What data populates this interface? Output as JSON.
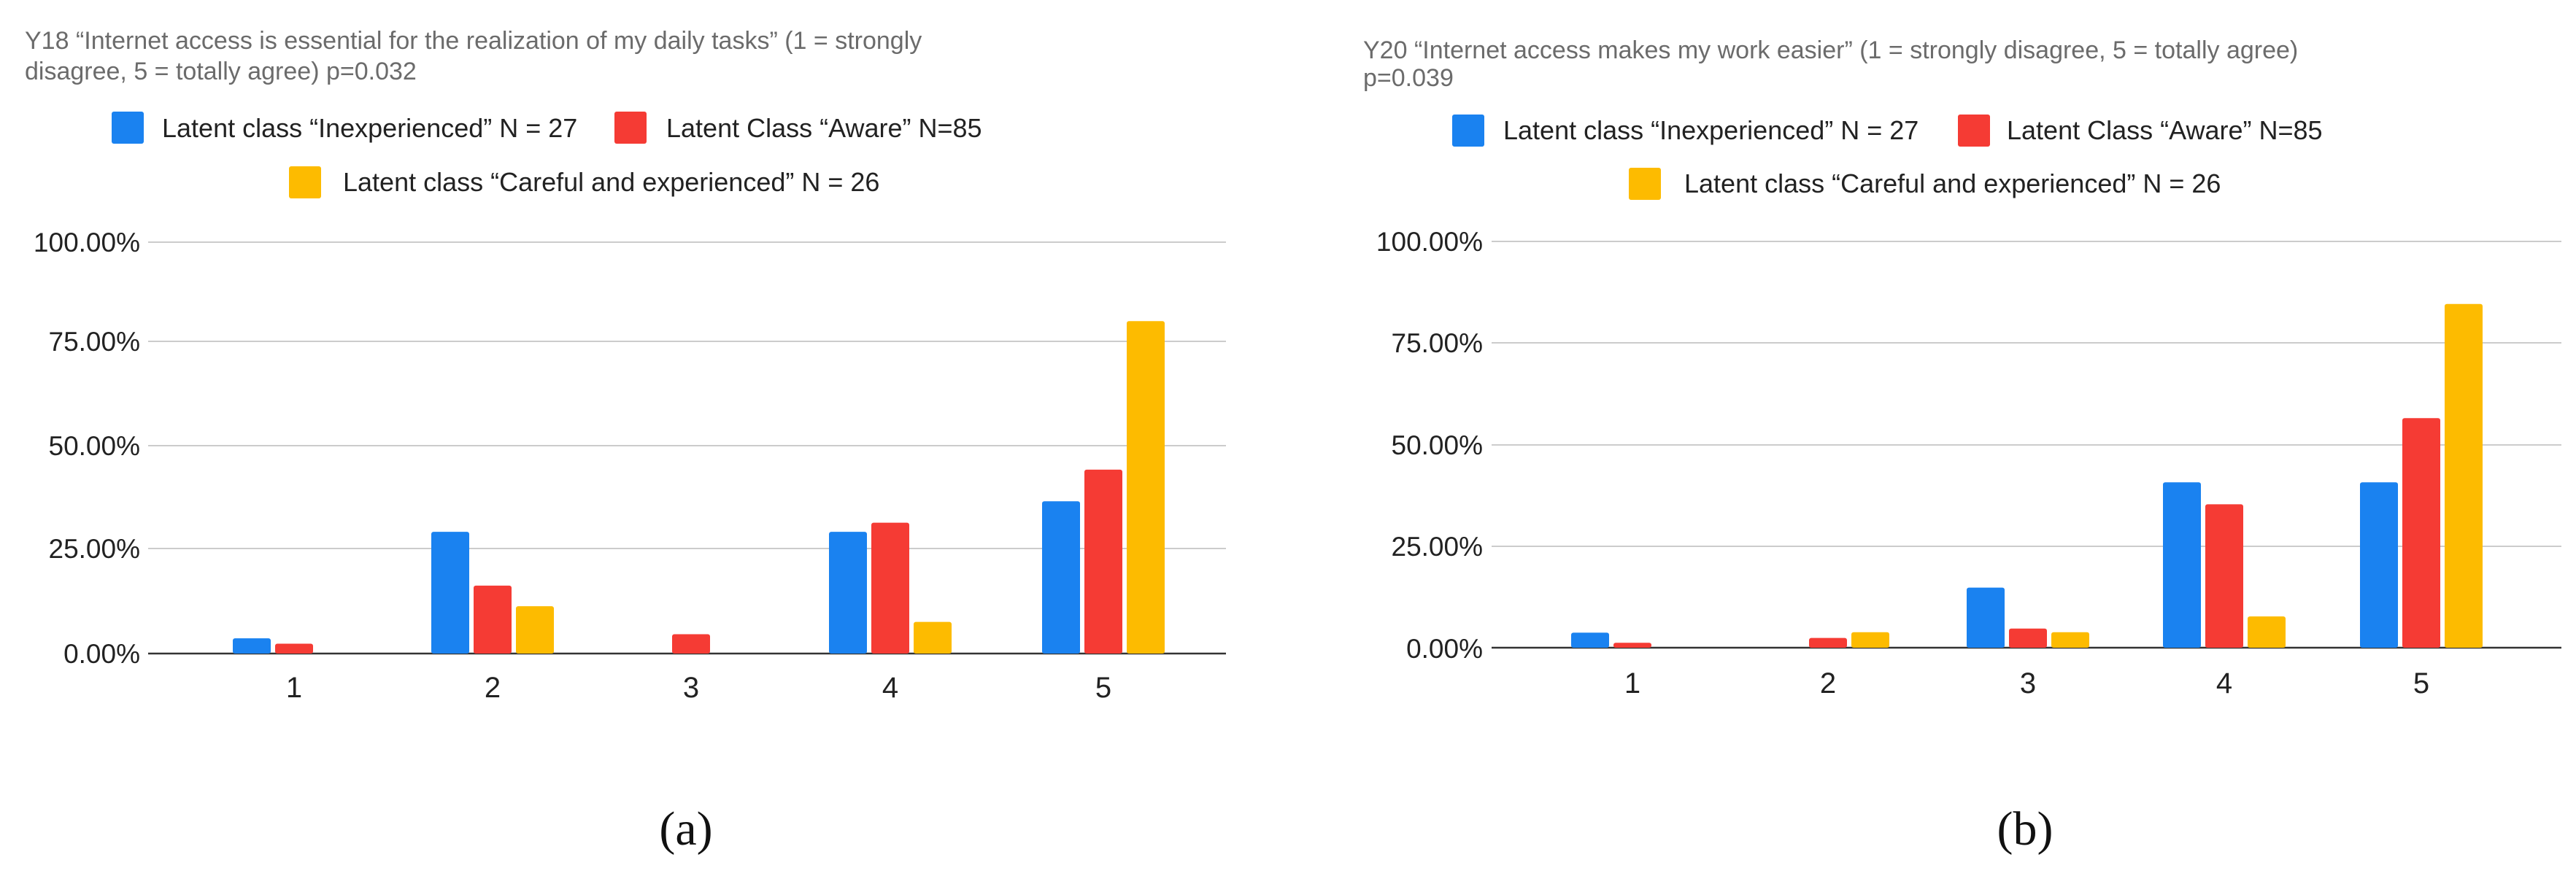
{
  "colors": {
    "inexperienced": "#1a82f0",
    "aware": "#f53b34",
    "careful": "#fdbb00"
  },
  "chart_data": [
    {
      "type": "bar",
      "title": "Y18 “Internet access is essential for the realization of my daily tasks” (1 = strongly disagree, 5 = totally agree) p=0.032",
      "title_lines": [
        "Y18 “Internet access is essential for the realization of my daily tasks” (1 = strongly",
        "disagree, 5 = totally agree) p=0.032"
      ],
      "categories": [
        "1",
        "2",
        "3",
        "4",
        "5"
      ],
      "ytick_labels": [
        "0.00%",
        "25.00%",
        "50.00%",
        "75.00%",
        "100.00%"
      ],
      "ylim": [
        0,
        100
      ],
      "grid": true,
      "legend_position": "top",
      "series": [
        {
          "name": "Latent class   “Inexperienced” N = 27",
          "color": "#1a82f0",
          "values": [
            3.7,
            29.6,
            0,
            29.6,
            37.0
          ]
        },
        {
          "name": "Latent Class “Aware”  N=85",
          "color": "#f53b34",
          "values": [
            2.4,
            16.5,
            4.7,
            31.8,
            44.7
          ]
        },
        {
          "name": "Latent class “Careful and experienced” N = 26",
          "color": "#fdbb00",
          "values": [
            0,
            11.5,
            0,
            7.7,
            80.8
          ]
        }
      ],
      "caption": "(a)"
    },
    {
      "type": "bar",
      "title": "Y20 “Internet access makes my work easier” (1 = strongly disagree, 5 = totally agree) p=0.039",
      "title_lines": [
        "Y20 “Internet access makes my work easier” (1 = strongly disagree, 5 = totally agree)",
        "p=0.039"
      ],
      "categories": [
        "1",
        "2",
        "3",
        "4",
        "5"
      ],
      "ytick_labels": [
        "0.00%",
        "25.00%",
        "50.00%",
        "75.00%",
        "100.00%"
      ],
      "ylim": [
        0,
        100
      ],
      "grid": true,
      "legend_position": "top",
      "series": [
        {
          "name": "Latent class   “Inexperienced” N = 27",
          "color": "#1a82f0",
          "values": [
            3.7,
            0,
            14.8,
            40.7,
            40.7
          ]
        },
        {
          "name": "Latent Class “Aware”  N=85",
          "color": "#f53b34",
          "values": [
            1.2,
            2.4,
            4.7,
            35.3,
            56.5
          ]
        },
        {
          "name": "Latent class “Careful and experienced” N = 26",
          "color": "#fdbb00",
          "values": [
            0,
            3.8,
            3.8,
            7.7,
            84.6
          ]
        }
      ],
      "caption": "(b)"
    }
  ]
}
